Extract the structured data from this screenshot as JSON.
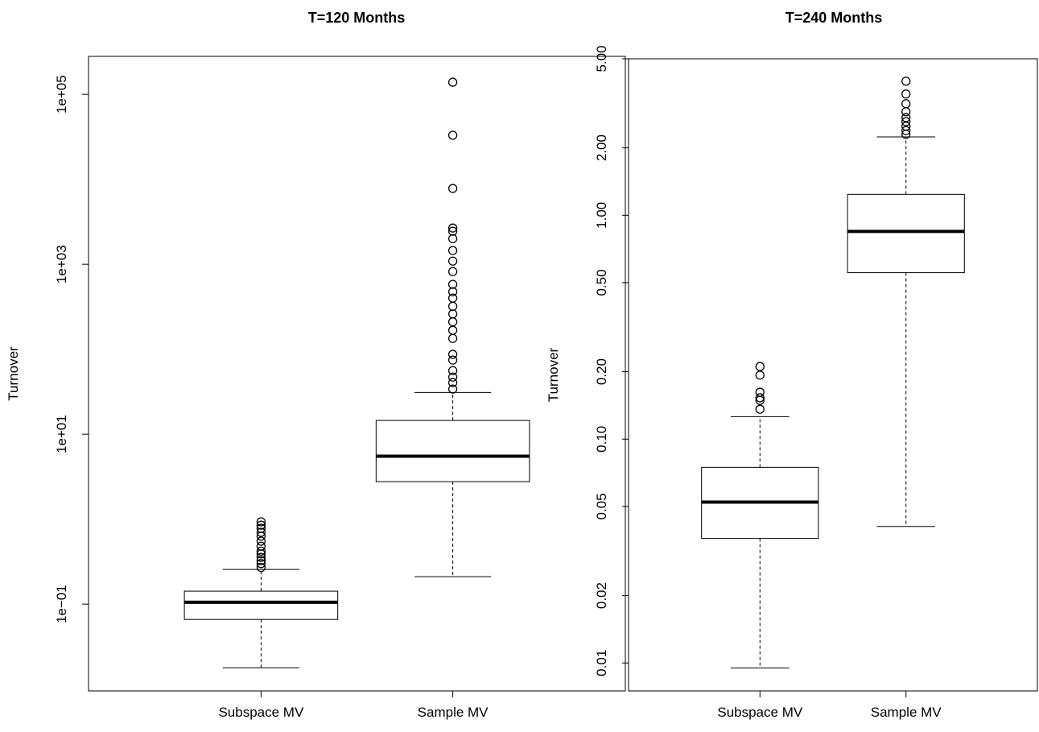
{
  "chart_data": [
    {
      "type": "box",
      "title": "T=120 Months",
      "ylabel": "Turnover",
      "ylog": true,
      "categories": [
        "Subspace MV",
        "Sample MV"
      ],
      "ylim": [
        0.0095,
        280000
      ],
      "yticks": [
        {
          "value": 0.1,
          "label": "1e−01"
        },
        {
          "value": 10,
          "label": "1e+01"
        },
        {
          "value": 1000,
          "label": "1e+03"
        },
        {
          "value": 100000,
          "label": "1e+05"
        }
      ],
      "boxes": [
        {
          "whislo": 0.0178,
          "q1": 0.066,
          "med": 0.105,
          "q3": 0.142,
          "whishi": 0.256,
          "fliers": [
            0.93,
            0.85,
            0.78,
            0.7,
            0.63,
            0.55,
            0.48,
            0.42,
            0.39,
            0.355,
            0.325,
            0.3,
            0.27
          ]
        },
        {
          "whislo": 0.21,
          "q1": 2.76,
          "med": 5.5,
          "q3": 14.5,
          "whishi": 31,
          "fliers": [
            139000,
            33000,
            7800,
            2670,
            2450,
            2000,
            1450,
            1090,
            820,
            580,
            475,
            400,
            320,
            260,
            210,
            167,
            134,
            87,
            74.5,
            56,
            47,
            40.5,
            34
          ]
        }
      ]
    },
    {
      "type": "box",
      "title": "T=240 Months",
      "ylabel": "Turnover",
      "ylog": true,
      "categories": [
        "Subspace MV",
        "Sample MV"
      ],
      "ylim": [
        0.0075,
        5.0
      ],
      "yticks": [
        0.01,
        0.02,
        0.05,
        {
          "value": 0.1,
          "label": "0.10"
        },
        {
          "value": 0.2,
          "label": "0.20"
        },
        {
          "value": 0.5,
          "label": "0.50"
        },
        {
          "value": 1,
          "label": "1.00"
        },
        {
          "value": 2,
          "label": "2.00"
        },
        {
          "value": 5,
          "label": "5.00"
        }
      ],
      "boxes": [
        {
          "whislo": 0.0095,
          "q1": 0.036,
          "med": 0.0523,
          "q3": 0.0748,
          "whishi": 0.126,
          "fliers": [
            0.136,
            0.149,
            0.153,
            0.162,
            0.193,
            0.211
          ]
        },
        {
          "whislo": 0.0407,
          "q1": 0.554,
          "med": 0.847,
          "q3": 1.24,
          "whishi": 2.24,
          "fliers": [
            2.3,
            2.39,
            2.5,
            2.62,
            2.73,
            2.9,
            3.15,
            3.48,
            3.97
          ]
        }
      ]
    }
  ]
}
